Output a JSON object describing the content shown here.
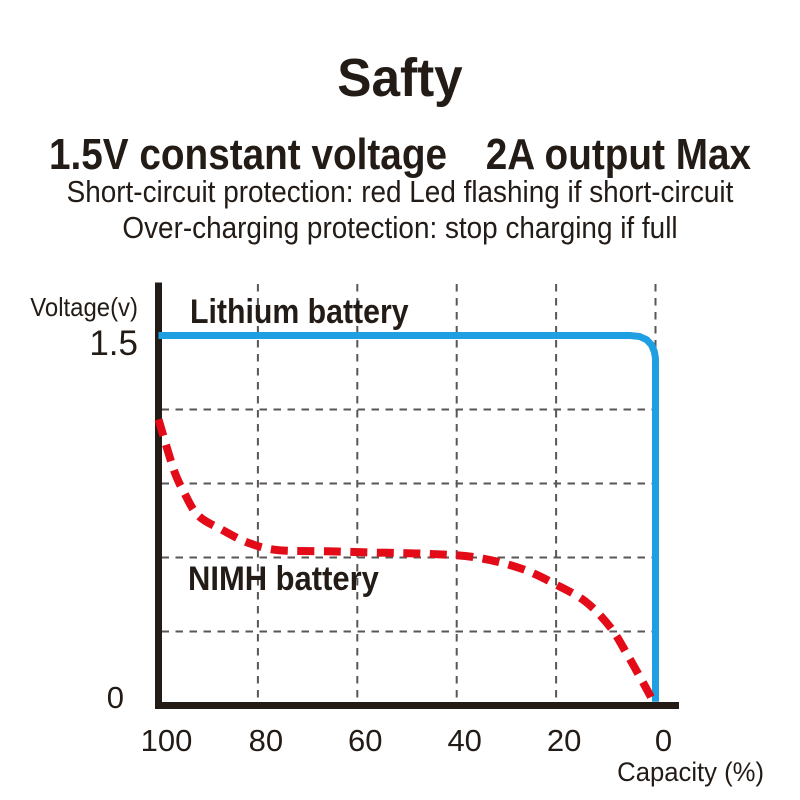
{
  "header": {
    "title": "Safty",
    "subtitle_left": "1.5V constant voltage",
    "subtitle_right": "2A output Max",
    "protection_line1": "Short-circuit protection: red Led flashing if short-circuit",
    "protection_line2": "Over-charging protection: stop charging if full"
  },
  "chart_data": {
    "type": "line",
    "xlabel": "Capacity (%)",
    "ylabel": "Voltage(v)",
    "x_axis": {
      "direction": "reversed",
      "range": [
        100,
        0
      ],
      "tick_values": [
        100,
        80,
        60,
        40,
        20,
        0
      ],
      "tick_labels": [
        "100",
        "80",
        "60",
        "40",
        "20",
        "0"
      ]
    },
    "y_axis": {
      "range": [
        0,
        1.5
      ],
      "tick_values": [
        1.5,
        0
      ],
      "tick_labels": [
        "1.5",
        "0"
      ]
    },
    "grid": {
      "style": "dashed",
      "color": "#595655",
      "x_values": [
        80,
        60,
        40,
        20,
        0
      ],
      "y_values": [
        1.2,
        0.9,
        0.6,
        0.3
      ]
    },
    "series": [
      {
        "name": "Lithium battery",
        "color": "#1d9fe1",
        "style": "solid",
        "smooth": false,
        "points": [
          [
            100,
            1.5
          ],
          [
            5.2,
            1.5
          ],
          [
            3.2,
            1.496
          ],
          [
            1.8,
            1.483
          ],
          [
            0.8,
            1.462
          ],
          [
            0.25,
            1.435
          ],
          [
            0.03,
            1.41
          ],
          [
            0,
            1.39
          ],
          [
            0,
            0.015
          ]
        ]
      },
      {
        "name": "NIMH battery",
        "color": "#e30b17",
        "style": "dashed",
        "smooth": true,
        "points": [
          [
            100,
            1.16
          ],
          [
            97,
            0.96
          ],
          [
            95,
            0.87
          ],
          [
            92,
            0.77
          ],
          [
            87,
            0.71
          ],
          [
            82,
            0.66
          ],
          [
            76,
            0.63
          ],
          [
            66,
            0.625
          ],
          [
            56,
            0.62
          ],
          [
            46,
            0.615
          ],
          [
            36,
            0.6
          ],
          [
            27,
            0.555
          ],
          [
            20,
            0.49
          ],
          [
            14,
            0.42
          ],
          [
            9,
            0.315
          ],
          [
            5.5,
            0.2
          ],
          [
            2.7,
            0.1
          ],
          [
            1.2,
            0.045
          ],
          [
            0.5,
            0.015
          ]
        ]
      }
    ],
    "axis_color": "#231b16"
  }
}
